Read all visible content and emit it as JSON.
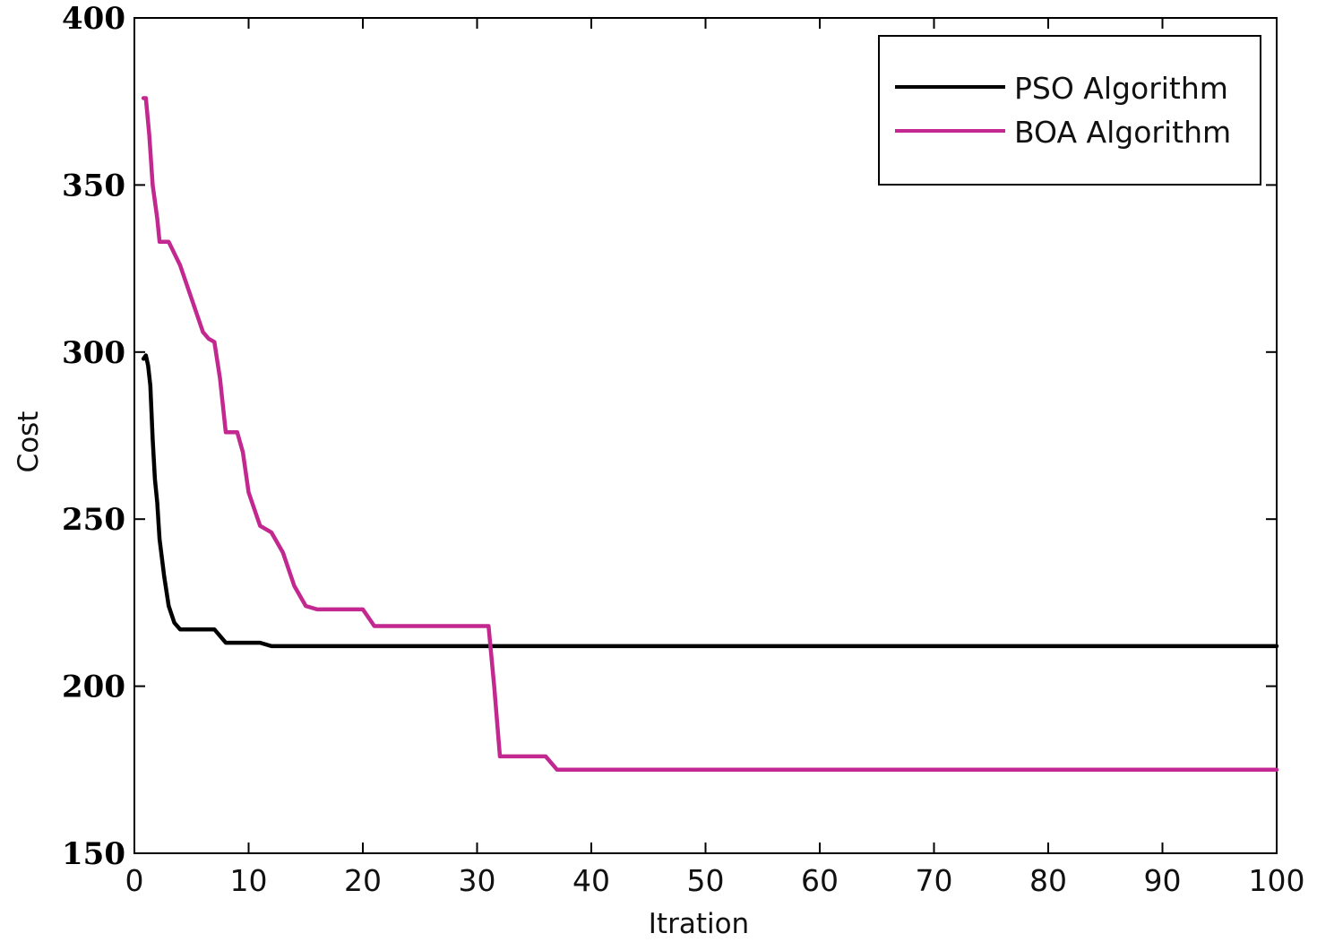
{
  "chart_data": {
    "type": "line",
    "title": "",
    "xlabel": "Itration",
    "ylabel": "Cost",
    "xlim": [
      0,
      100
    ],
    "ylim": [
      150,
      400
    ],
    "xticks": [
      0,
      10,
      20,
      30,
      40,
      50,
      60,
      70,
      80,
      90,
      100
    ],
    "yticks": [
      150,
      200,
      250,
      300,
      350,
      400
    ],
    "grid": false,
    "legend_position": "top-right",
    "series": [
      {
        "name": "PSO Algorithm",
        "color": "#000000",
        "points": [
          [
            0.8,
            298
          ],
          [
            1.0,
            299
          ],
          [
            1.2,
            296
          ],
          [
            1.4,
            290
          ],
          [
            1.6,
            274
          ],
          [
            1.8,
            262
          ],
          [
            2.0,
            255
          ],
          [
            2.2,
            244
          ],
          [
            2.6,
            233
          ],
          [
            3.0,
            224
          ],
          [
            3.5,
            219
          ],
          [
            4.0,
            217
          ],
          [
            7.0,
            217
          ],
          [
            8.0,
            213
          ],
          [
            11.0,
            213
          ],
          [
            12.0,
            212
          ],
          [
            100,
            212
          ]
        ]
      },
      {
        "name": "BOA Algorithm",
        "color": "#c2288f",
        "points": [
          [
            0.8,
            376
          ],
          [
            1.0,
            376
          ],
          [
            1.3,
            365
          ],
          [
            1.6,
            350
          ],
          [
            2.0,
            340
          ],
          [
            2.2,
            333
          ],
          [
            3.0,
            333
          ],
          [
            4.0,
            326
          ],
          [
            5.0,
            316
          ],
          [
            6.0,
            306
          ],
          [
            6.5,
            304
          ],
          [
            7.0,
            303
          ],
          [
            7.5,
            292
          ],
          [
            8.0,
            276
          ],
          [
            9.0,
            276
          ],
          [
            9.5,
            270
          ],
          [
            10.0,
            258
          ],
          [
            11.0,
            248
          ],
          [
            12.0,
            246
          ],
          [
            13.0,
            240
          ],
          [
            14.0,
            230
          ],
          [
            15.0,
            224
          ],
          [
            16.0,
            223
          ],
          [
            20.0,
            223
          ],
          [
            21.0,
            218
          ],
          [
            31.0,
            218
          ],
          [
            31.5,
            200
          ],
          [
            32.0,
            179
          ],
          [
            36.0,
            179
          ],
          [
            37.0,
            175
          ],
          [
            100,
            175
          ]
        ]
      }
    ]
  }
}
